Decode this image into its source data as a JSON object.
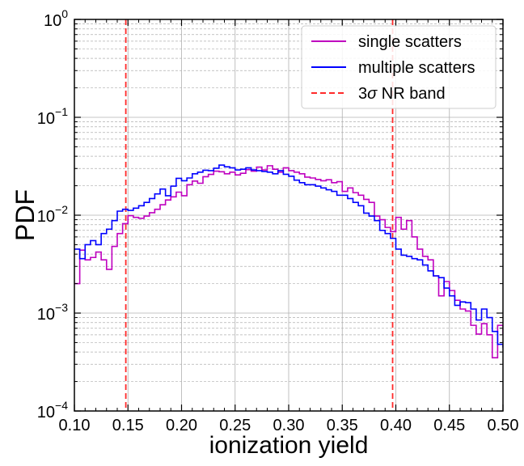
{
  "chart_data": {
    "type": "line",
    "xlabel": "ionization yield",
    "ylabel": "PDF",
    "xlim": [
      0.1,
      0.5
    ],
    "ylim": [
      0.0001,
      1
    ],
    "yscale": "log",
    "grid": true,
    "legend_position": "top-right",
    "x_ticks": [
      "0.10",
      "0.15",
      "0.20",
      "0.25",
      "0.30",
      "0.35",
      "0.40",
      "0.45",
      "0.50"
    ],
    "y_ticks": [
      {
        "base": "10",
        "exp": "0",
        "value": 1
      },
      {
        "base": "10",
        "exp": "−1",
        "value": 0.1
      },
      {
        "base": "10",
        "exp": "−2",
        "value": 0.01
      },
      {
        "base": "10",
        "exp": "−3",
        "value": 0.001
      },
      {
        "base": "10",
        "exp": "−4",
        "value": 0.0001
      }
    ],
    "legend": [
      {
        "label": "single scatters",
        "color": "#bf00bf",
        "style": "solid"
      },
      {
        "label": "multiple scatters",
        "color": "#0000ff",
        "style": "solid"
      },
      {
        "label_prefix": "3",
        "label_sigma": "σ",
        "label_suffix": " NR band",
        "color": "#ff2a2a",
        "style": "dashed"
      }
    ],
    "bin_edges_start": 0.1,
    "bin_width": 0.005,
    "series": [
      {
        "name": "single scatters",
        "color": "#bf00bf",
        "values": [
          0.002,
          0.0044,
          0.0035,
          0.0037,
          0.0042,
          0.0035,
          0.0028,
          0.0048,
          0.0065,
          0.0082,
          0.0099,
          0.0095,
          0.0093,
          0.0098,
          0.0106,
          0.0115,
          0.0128,
          0.0143,
          0.0154,
          0.0172,
          0.0158,
          0.0205,
          0.0223,
          0.0212,
          0.0247,
          0.0261,
          0.0282,
          0.0278,
          0.0265,
          0.0275,
          0.0258,
          0.0268,
          0.0292,
          0.0282,
          0.031,
          0.029,
          0.032,
          0.0295,
          0.0275,
          0.0305,
          0.0285,
          0.0275,
          0.0265,
          0.0245,
          0.024,
          0.0232,
          0.0225,
          0.023,
          0.0215,
          0.022,
          0.0175,
          0.019,
          0.017,
          0.016,
          0.0145,
          0.0135,
          0.0098,
          0.009,
          0.0075,
          0.0068,
          0.0095,
          0.0072,
          0.0088,
          0.006,
          0.0045,
          0.0038,
          0.0035,
          0.0024,
          0.0015,
          0.0021,
          0.0017,
          0.00135,
          0.0011,
          0.00105,
          0.00075,
          0.00061,
          0.00078,
          0.0006,
          0.00035,
          0.00075,
          0.00062,
          0.00025,
          0.00042,
          0.00022,
          0.00025,
          0.00023,
          0.00031,
          0.00017,
          0.00013,
          0.00015,
          0.00023,
          0.00012,
          0.0001,
          0.00011,
          0.00015,
          0.00015,
          0.00015,
          0.00015,
          0.00023,
          0.00034
        ]
      },
      {
        "name": "multiple scatters",
        "color": "#0000ff",
        "values": [
          0.0045,
          0.0036,
          0.005,
          0.0055,
          0.005,
          0.0065,
          0.0072,
          0.0088,
          0.011,
          0.0115,
          0.0112,
          0.0118,
          0.0125,
          0.0135,
          0.0148,
          0.0165,
          0.0185,
          0.0158,
          0.0198,
          0.0238,
          0.0225,
          0.024,
          0.0265,
          0.0275,
          0.0288,
          0.0285,
          0.0302,
          0.0325,
          0.0312,
          0.0305,
          0.029,
          0.0295,
          0.0305,
          0.029,
          0.0285,
          0.028,
          0.0275,
          0.0265,
          0.0285,
          0.0262,
          0.025,
          0.0228,
          0.0215,
          0.0205,
          0.0205,
          0.0198,
          0.019,
          0.0182,
          0.0175,
          0.016,
          0.016,
          0.0148,
          0.0135,
          0.0125,
          0.0105,
          0.0098,
          0.0088,
          0.007,
          0.0065,
          0.0058,
          0.0045,
          0.0039,
          0.0038,
          0.0036,
          0.0035,
          0.0031,
          0.0027,
          0.0024,
          0.0023,
          0.0018,
          0.0015,
          0.0012,
          0.0013,
          0.00128,
          0.0011,
          0.00085,
          0.0011,
          0.0009,
          0.00065,
          0.00048,
          0.00045,
          0.00052,
          0.0003,
          0.00025,
          0.00018,
          0.0001,
          0.00015,
          0.0001,
          0.00012,
          0.00015,
          0.0001,
          0.00012,
          0.0001,
          0.0001
        ]
      }
    ],
    "vertical_lines": [
      {
        "x": 0.148,
        "color": "#ff2a2a",
        "style": "dashed"
      },
      {
        "x": 0.397,
        "color": "#ff2a2a",
        "style": "dashed"
      }
    ]
  }
}
